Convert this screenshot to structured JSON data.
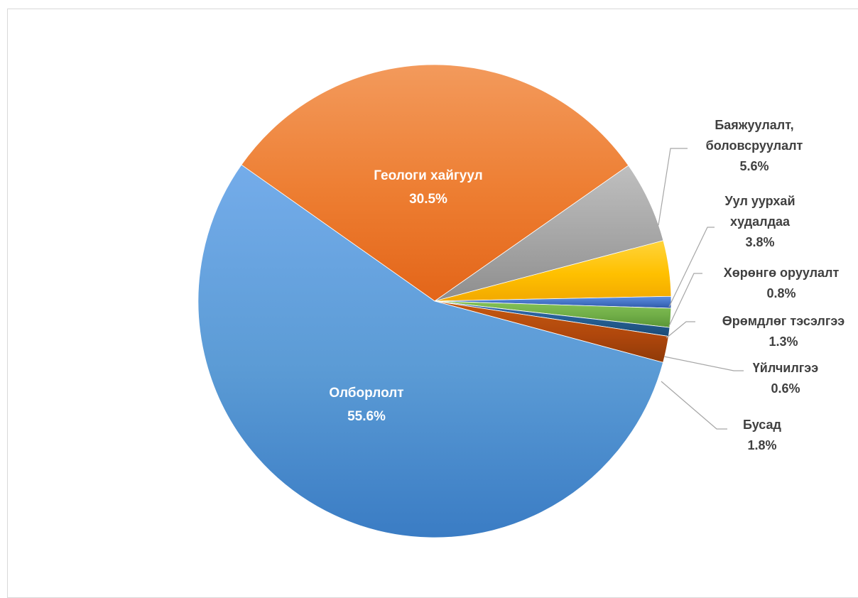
{
  "chart_data": {
    "type": "pie",
    "title": "",
    "start_angle_deg": 305.2,
    "direction": "clockwise",
    "slices": [
      {
        "label_lines": [
          "Геологи хайгуул"
        ],
        "value": 30.5,
        "value_label": "30.5%",
        "color_light": "#f39a5c",
        "color": "#ed7d31",
        "color_dark": "#e36519",
        "label_placement": "inside"
      },
      {
        "label_lines": [
          "Баяжуулалт,",
          "боловсруулалт"
        ],
        "value": 5.6,
        "value_label": "5.6%",
        "color_light": "#bfbfbf",
        "color": "#a5a5a5",
        "color_dark": "#8e8e8e",
        "label_placement": "outside"
      },
      {
        "label_lines": [
          "Уул уурхай",
          "худалдаа"
        ],
        "value": 3.8,
        "value_label": "3.8%",
        "color_light": "#ffd43b",
        "color": "#ffc000",
        "color_dark": "#f2a900",
        "label_placement": "outside"
      },
      {
        "label_lines": [
          "Хөрөнгө оруулалт"
        ],
        "value": 0.8,
        "value_label": "0.8%",
        "color_light": "#5b8fe0",
        "color": "#4472c4",
        "color_dark": "#2f5aa8",
        "label_placement": "outside"
      },
      {
        "label_lines": [
          "Өрөмдлөг тэсэлгээ"
        ],
        "value": 1.3,
        "value_label": "1.3%",
        "color_light": "#84c256",
        "color": "#70ad47",
        "color_dark": "#5a9536",
        "label_placement": "outside"
      },
      {
        "label_lines": [
          "Үйлчилгээ"
        ],
        "value": 0.6,
        "value_label": "0.6%",
        "color_light": "#3a6bb3",
        "color": "#255e91",
        "color_dark": "#1b4a75",
        "label_placement": "outside"
      },
      {
        "label_lines": [
          "Бусад"
        ],
        "value": 1.8,
        "value_label": "1.8%",
        "color_light": "#c55a11",
        "color": "#b0470c",
        "color_dark": "#8f3a08",
        "label_placement": "outside"
      },
      {
        "label_lines": [
          "Олборлолт"
        ],
        "value": 55.6,
        "value_label": "55.6%",
        "color_light": "#74acea",
        "color": "#5b9bd5",
        "color_dark": "#3a7cc4",
        "label_placement": "inside"
      }
    ],
    "legend": "none"
  }
}
